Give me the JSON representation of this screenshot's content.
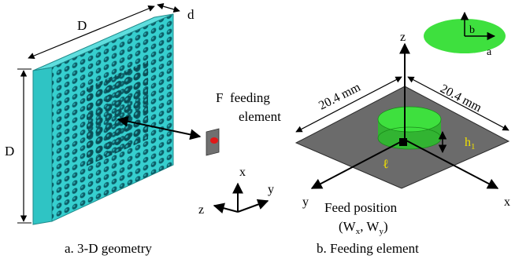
{
  "left_panel": {
    "label_D_top": "D",
    "label_d": "d",
    "label_D_side": "D",
    "feeding_label_line1": "F  feeding",
    "feeding_label_line2": "element",
    "axes": {
      "x": "x",
      "y": "y",
      "z": "z"
    },
    "caption": "a. 3-D geometry"
  },
  "right_panel": {
    "dim_left": "20.4 mm",
    "dim_right": "20.4 mm",
    "height_label": "h",
    "height_subscript": "1",
    "ell_label": "ℓ",
    "ellipse_label_a": "a",
    "ellipse_label_b": "b",
    "axes": {
      "x": "x",
      "y": "y",
      "z": "z"
    },
    "feed_position_line1": "Feed position",
    "feed_position_line2": "(W",
    "feed_position_sub_x": "x",
    "feed_position_mid": ", W",
    "feed_position_sub_y": "y",
    "feed_position_end": ")",
    "caption": "b. Feeding element"
  },
  "colors": {
    "slab": "#33c9c9",
    "slab_dark": "#1f9a9a",
    "hole": "#0c5f68",
    "ground_plane": "#6b6b6b",
    "patch_green": "#3ee03e",
    "feed_red": "#e01818",
    "height_label": "#f0e000"
  }
}
